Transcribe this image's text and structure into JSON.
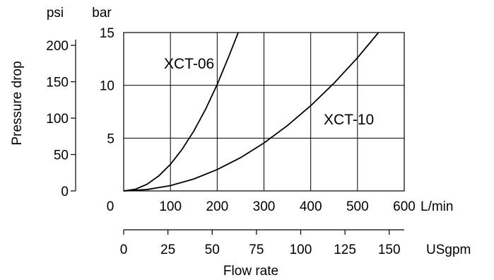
{
  "chart_data": {
    "type": "line",
    "title": "",
    "ylabel": "Pressure drop",
    "xlabel": "Flow rate",
    "grid": true,
    "axes": {
      "bar": {
        "unit": "bar",
        "ylim": [
          0,
          15
        ],
        "ticks": [
          0,
          5,
          10,
          15
        ],
        "tick_labels": [
          "5",
          "10",
          "15"
        ]
      },
      "psi": {
        "unit": "psi",
        "ylim": [
          0,
          217.6
        ],
        "ticks": [
          0,
          50,
          100,
          150,
          200
        ],
        "tick_labels": [
          "0",
          "50",
          "100",
          "150",
          "200"
        ]
      },
      "lmin": {
        "unit": "L/min",
        "xlim": [
          0,
          600
        ],
        "ticks": [
          0,
          100,
          200,
          300,
          400,
          500,
          600
        ],
        "tick_labels": [
          "0",
          "100",
          "200",
          "300",
          "400",
          "500",
          "600"
        ]
      },
      "usgpm": {
        "unit": "USgpm",
        "xlim": [
          0,
          158.5
        ],
        "ticks": [
          0,
          25,
          50,
          75,
          100,
          125,
          150
        ],
        "tick_labels": [
          "0",
          "25",
          "50",
          "75",
          "100",
          "125",
          "150"
        ]
      }
    },
    "series": [
      {
        "name": "XCT-06",
        "x": [
          0,
          25,
          50,
          75,
          100,
          125,
          150,
          175,
          200,
          225,
          245
        ],
        "y": [
          0,
          0.16,
          0.63,
          1.42,
          2.52,
          3.94,
          5.67,
          7.72,
          10.08,
          12.76,
          15.0
        ]
      },
      {
        "name": "XCT-10",
        "x": [
          0,
          50,
          100,
          150,
          200,
          250,
          300,
          350,
          400,
          450,
          500,
          545
        ],
        "y": [
          0,
          0.13,
          0.5,
          1.13,
          2.02,
          3.15,
          4.54,
          6.18,
          8.07,
          10.21,
          12.61,
          15.0
        ]
      }
    ]
  }
}
